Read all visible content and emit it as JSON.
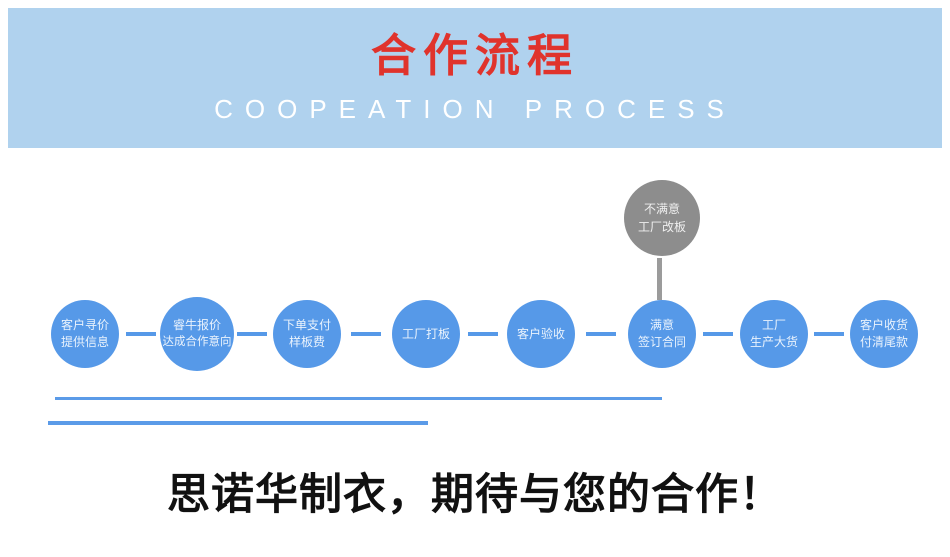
{
  "banner": {
    "title": "合作流程",
    "subtitle": "COOPEATION PROCESS",
    "background_color": "#b0d2ee",
    "title_color": "#e0332c",
    "subtitle_color": "#ffffff"
  },
  "flow": {
    "node_color": "#5699e8",
    "node_text_color": "#eaf3fd",
    "connector_color": "#5699e8",
    "branch_node_color": "#8d8d8d",
    "branch_connector_color": "#9b9b9b",
    "steps": [
      {
        "lines": [
          "客户寻价",
          "提供信息"
        ]
      },
      {
        "lines": [
          "睿牛报价",
          "达成合作意向"
        ]
      },
      {
        "lines": [
          "下单支付",
          "样板费"
        ]
      },
      {
        "lines": [
          "工厂打板"
        ]
      },
      {
        "lines": [
          "客户验收"
        ]
      },
      {
        "lines": [
          "满意",
          "签订合同"
        ]
      },
      {
        "lines": [
          "工厂",
          "生产大货"
        ]
      },
      {
        "lines": [
          "客户收货",
          "付清尾款"
        ]
      }
    ],
    "branch": {
      "lines": [
        "不满意",
        "工厂改板"
      ]
    }
  },
  "accents": {
    "underline_color": "#5b9be8"
  },
  "footer": {
    "headline": "思诺华制衣，期待与您的合作！",
    "text_color": "#111111"
  }
}
